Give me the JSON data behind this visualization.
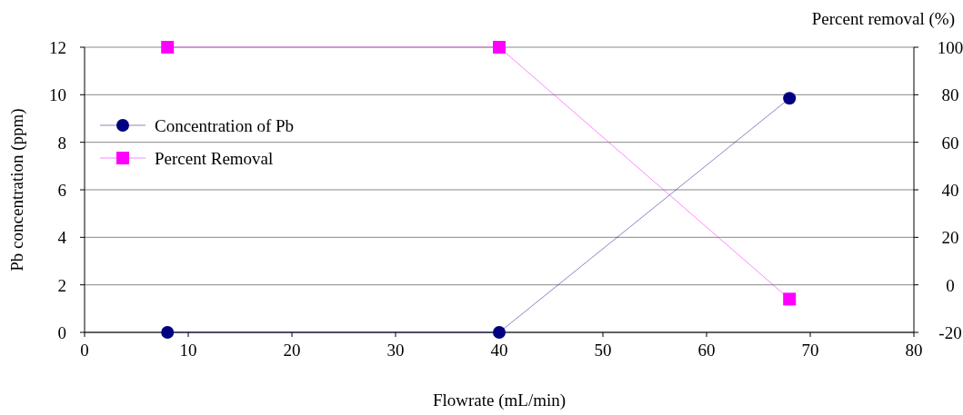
{
  "chart_data": {
    "type": "line",
    "xlabel": "Flowrate (mL/min)",
    "ylabel": "Pb concentration (ppm)",
    "y2label": "Percent removal (%)",
    "x": [
      8,
      40,
      68
    ],
    "series": [
      {
        "name": "Concentration of Pb",
        "color": "#000080",
        "marker": "circle",
        "values": [
          0,
          0,
          9.85
        ]
      },
      {
        "name": "Percent Removal",
        "color": "#ff00ff",
        "marker": "square",
        "axis": "y2",
        "values": [
          100,
          100,
          -6
        ]
      }
    ],
    "xlim": [
      0,
      80
    ],
    "xticks": [
      0,
      10,
      20,
      30,
      40,
      50,
      60,
      70,
      80
    ],
    "ylim": [
      0,
      12
    ],
    "yticks": [
      0,
      2,
      4,
      6,
      8,
      10,
      12
    ],
    "y2lim": [
      -20,
      100
    ],
    "y2ticks": [
      -20,
      0,
      20,
      40,
      60,
      80,
      100
    ],
    "grid": "y",
    "legend": "left"
  }
}
